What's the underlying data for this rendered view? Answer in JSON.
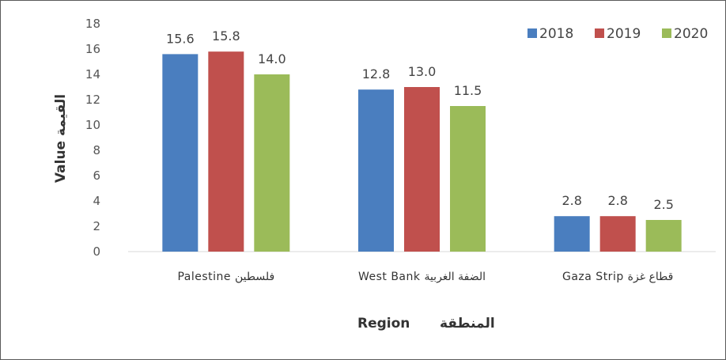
{
  "chart_data": {
    "type": "bar",
    "categories": [
      "Palestine  فلسطين",
      "West Bank  الضفة الغربية",
      "Gaza Strip  قطاع غزة"
    ],
    "series": [
      {
        "name": "2018",
        "color": "#4a7ebf",
        "values": [
          15.6,
          12.8,
          2.8
        ],
        "labels": [
          "15.6",
          "12.8",
          "2.8"
        ]
      },
      {
        "name": "2019",
        "color": "#c0504d",
        "values": [
          15.8,
          13.0,
          2.8
        ],
        "labels": [
          "15.8",
          "13.0",
          "2.8"
        ]
      },
      {
        "name": "2020",
        "color": "#9bbb59",
        "values": [
          14.0,
          11.5,
          2.5
        ],
        "labels": [
          "14.0",
          "11.5",
          "2.5"
        ]
      }
    ],
    "ylim": [
      0,
      18
    ],
    "yticks": [
      "0",
      "2",
      "4",
      "6",
      "8",
      "10",
      "12",
      "14",
      "16",
      "18"
    ],
    "ylabel": "Value  القيمة",
    "xlabel": "Region",
    "xlabel_ar": "المنطقة",
    "legend_position": "top-right",
    "grid": false
  }
}
